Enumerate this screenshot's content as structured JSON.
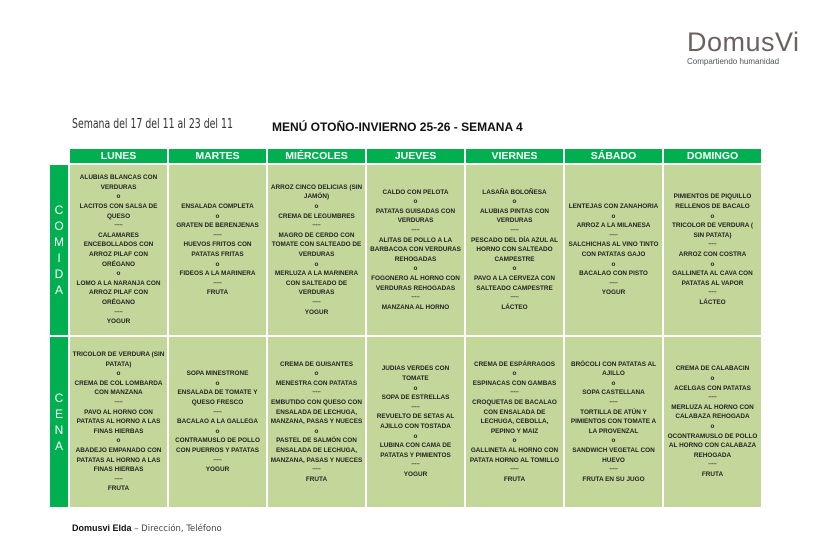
{
  "logo": {
    "name": "DomusVi",
    "tagline": "Compartiendo humanidad"
  },
  "week_label": "Semana del 17 del 11 al 23 del 11",
  "title": "MENÚ OTOÑO-INVIERNO  25-26  - SEMANA 4",
  "days": [
    "LUNES",
    "MARTES",
    "MIÉRCOLES",
    "JUEVES",
    "VIERNES",
    "SÁBADO",
    "DOMINGO"
  ],
  "colors": {
    "green": "#00b050",
    "cell": "#c4d79b"
  },
  "meals": [
    {
      "label": "COMIDA",
      "cells": [
        [
          "ALUBIAS BLANCAS CON VERDURAS",
          "o",
          "LACITOS CON SALSA DE QUESO",
          "-----",
          "CALAMARES ENCEBOLLADOS CON ARROZ PILAF CON ORÉGANO",
          "o",
          "LOMO A LA NARANJA  CON ARROZ PILAF CON ORÉGANO",
          "-----",
          "YOGUR"
        ],
        [
          "ENSALADA COMPLETA",
          "o",
          "GRATEN DE BERENJENAS",
          "-----",
          "HUEVOS FRITOS CON PATATAS FRITAS",
          "o",
          "FIDEOS A LA MARINERA",
          "-----",
          "FRUTA"
        ],
        [
          "ARROZ CINCO DELICIAS (SIN JAMÓN)",
          "o",
          "CREMA DE LEGUMBRES",
          "-----",
          "MAGRO DE CERDO CON TOMATE CON SALTEADO DE VERDURAS",
          "o",
          "MERLUZA A LA MARINERA CON SALTEADO DE VERDURAS",
          "-----",
          "YOGUR"
        ],
        [
          "CALDO CON PELOTA",
          "o",
          "PATATAS GUISADAS CON VERDURAS",
          "-----",
          "ALITAS DE POLLO A LA BARBACOA CON VERDURAS REHOGADAS",
          "o",
          "FOGONERO AL HORNO CON VERDURAS REHOGADAS",
          "-----",
          "MANZANA AL HORNO"
        ],
        [
          "LASAÑA BOLOÑESA",
          "o",
          "ALUBIAS PINTAS CON VERDURAS",
          "-----",
          "PESCADO DEL DÍA AZUL AL HORNO CON SALTEADO CAMPESTRE",
          "o",
          "PAVO A LA CERVEZA CON SALTEADO CAMPESTRE",
          "-----",
          "LÁCTEO"
        ],
        [
          "LENTEJAS CON ZANAHORIA",
          "o",
          "ARROZ A LA MILANESA",
          "-----",
          "SALCHICHAS AL VINO TINTO CON PATATAS GAJO",
          "o",
          "BACALAO CON PISTO",
          "-----",
          "YOGUR"
        ],
        [
          "PIMIENTOS DE PIQUILLO RELLENOS DE BACALO",
          "o",
          "TRICOLOR DE VERDURA ( SIN PATATA)",
          "-----",
          "ARROZ CON COSTRA",
          "o",
          "GALLINETA AL CAVA CON PATATAS AL VAPOR",
          "-----",
          "LÁCTEO"
        ]
      ]
    },
    {
      "label": "CENA",
      "cells": [
        [
          "TRICOLOR DE VERDURA (SIN PATATA)",
          "o",
          "CREMA DE COL LOMBARDA CON MANZANA",
          "-----",
          "PAVO AL HORNO CON PATATAS AL HORNO A LAS FINAS HIERBAS",
          "o",
          "ABADEJO EMPANADO CON PATATAS AL HORNO A LAS FINAS HIERBAS",
          "-----",
          "FRUTA"
        ],
        [
          "SOPA MINESTRONE",
          "o",
          "ENSALADA DE TOMATE Y QUESO FRESCO",
          "-----",
          "BACALAO A LA GALLEGA",
          "o",
          "CONTRAMUSLO DE POLLO CON PUERROS Y PATATAS",
          "-----",
          "YOGUR"
        ],
        [
          "CREMA DE GUISANTES",
          "o",
          "MENESTRA CON PATATAS",
          "-----",
          "EMBUTIDO CON QUESO CON ENSALADA DE LECHUGA, MANZANA, PASAS Y NUECES",
          "o",
          "PASTEL DE SALMÓN CON ENSALADA DE LECHUGA, MANZANA, PASAS Y NUECES",
          "-----",
          "FRUTA"
        ],
        [
          "JUDIAS VERDES CON TOMATE",
          "o",
          "SOPA DE ESTRELLAS",
          "-----",
          "REVUELTO DE SETAS AL AJILLO CON TOSTADA",
          "o",
          "LUBINA CON CAMA DE PATATAS Y PIMIENTOS",
          "-----",
          "YOGUR"
        ],
        [
          "CREMA DE ESPÁRRAGOS",
          "o",
          "ESPINACAS CON GAMBAS",
          "-----",
          "CROQUETAS DE BACALAO CON ENSALADA DE LECHUGA, CEBOLLA, PEPINO Y MAIZ",
          "o",
          "GALLINETA AL HORNO CON PATATA HORNO AL TOMILLO",
          "-----",
          "FRUTA"
        ],
        [
          "BRÓCOLI CON PATATAS AL AJILLO",
          "o",
          "SOPA CASTELLANA",
          "-----",
          "TORTILLA DE ATÚN Y PIMIENTOS CON TOMATE A LA PROVENZAL",
          "o",
          "SANDWICH VEGETAL CON HUEVO",
          "-----",
          "FRUTA EN SU JUGO"
        ],
        [
          "CREMA DE CALABACIN",
          "o",
          "ACELGAS CON PATATAS",
          "-----",
          "MERLUZA AL HORNO CON CALABAZA REHOGADA",
          "o",
          "OCONTRAMUSLO DE POLLO AL HORNO CON CALABAZA REHOGADA",
          "-----",
          "FRUTA"
        ]
      ]
    }
  ],
  "footer": {
    "center": "Domusvi Elda",
    "rest": " – Dirección, Teléfono"
  }
}
